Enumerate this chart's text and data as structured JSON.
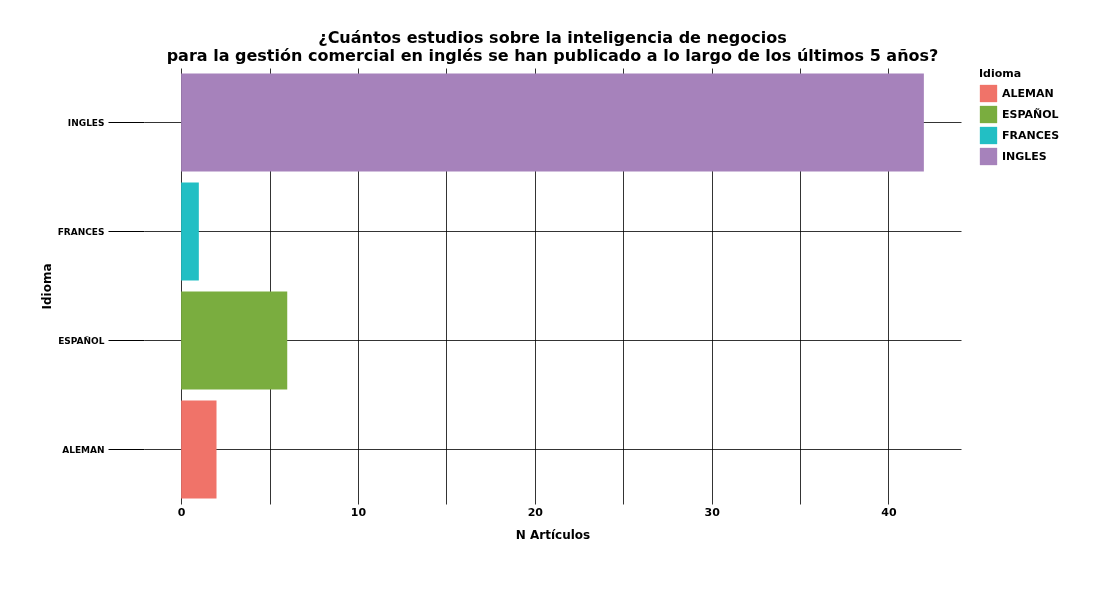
{
  "chart_data": {
    "type": "bar",
    "orientation": "horizontal",
    "title": "¿Cuántos estudios sobre la inteligencia de negocios\npara la gestión comercial en inglés se han publicado a lo largo de los últimos 5 años?",
    "xlabel": "N Artículos",
    "ylabel": "Idioma",
    "legend_title": "Idioma",
    "categories": [
      "INGLES",
      "FRANCES",
      "ESPAÑOL",
      "ALEMAN"
    ],
    "series": [
      {
        "name": "ALEMAN",
        "color": "#f07369",
        "values": [
          null,
          null,
          null,
          2
        ]
      },
      {
        "name": "ESPAÑOL",
        "color": "#7aad3f",
        "values": [
          null,
          null,
          6,
          null
        ]
      },
      {
        "name": "FRANCES",
        "color": "#22bfc4",
        "values": [
          null,
          1,
          null,
          null
        ]
      },
      {
        "name": "INGLES",
        "color": "#a682bb",
        "values": [
          42,
          null,
          null,
          null
        ]
      }
    ],
    "xlim": [
      -2.1,
      44.1
    ],
    "xticks": [
      0,
      {
        "value": 5,
        "label": null
      },
      10,
      {
        "value": 15,
        "label": null
      },
      20,
      {
        "value": 25,
        "label": null
      },
      30,
      {
        "value": 35,
        "label": null
      },
      40
    ],
    "grid": true,
    "legend": "right"
  }
}
